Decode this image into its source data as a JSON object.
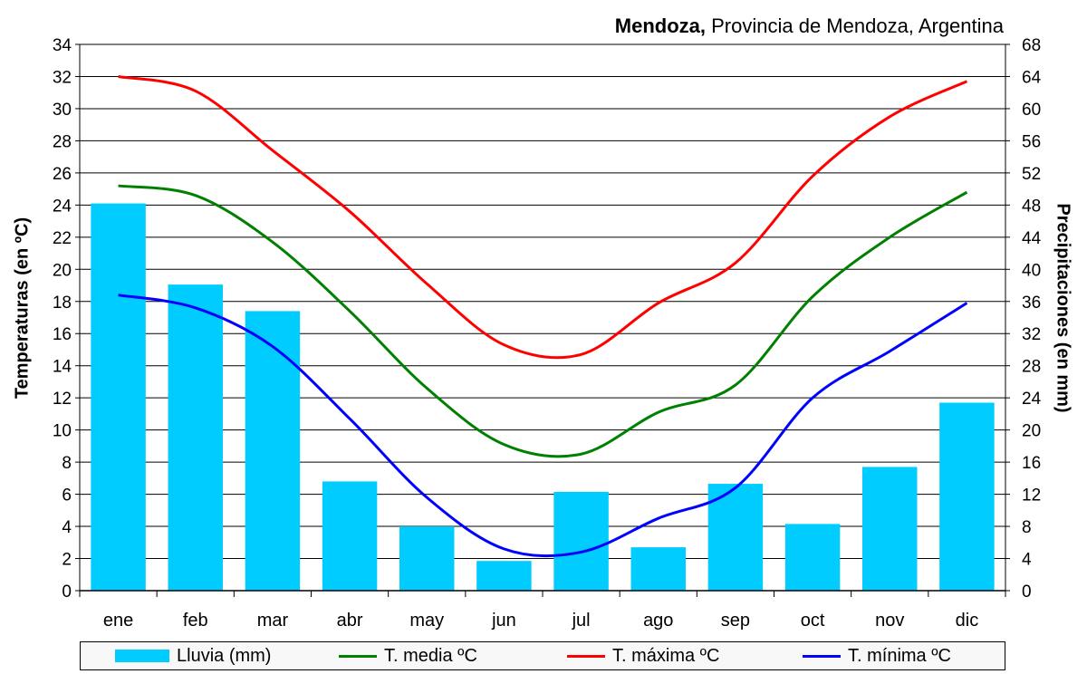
{
  "title": {
    "bold": "Mendoza,",
    "rest": " Provincia de Mendoza, Argentina"
  },
  "ylabel_left": "Temperaturas (en ºC)",
  "ylabel_right": "Precipitaciones (en mm)",
  "legend": {
    "rain": "Lluvia (mm)",
    "mean": "T. media ºC",
    "max": "T. máxima ºC",
    "min": "T. mínima ºC"
  },
  "colors": {
    "rain": "#00ccff",
    "mean": "#008000",
    "max": "#ff0000",
    "min": "#0000ff"
  },
  "chart_data": {
    "type": "bar",
    "title": "Mendoza, Provincia de Mendoza, Argentina",
    "categories": [
      "ene",
      "feb",
      "mar",
      "abr",
      "may",
      "jun",
      "jul",
      "ago",
      "sep",
      "oct",
      "nov",
      "dic"
    ],
    "ylabel": "Temperaturas (en ºC)",
    "ylabel_right": "Precipitaciones (en mm)",
    "ylim": [
      0,
      34
    ],
    "ylim_right": [
      0,
      68
    ],
    "yticks": [
      0,
      2,
      4,
      6,
      8,
      10,
      12,
      14,
      16,
      18,
      20,
      22,
      24,
      26,
      28,
      30,
      32,
      34
    ],
    "yticks_right": [
      0,
      4,
      8,
      12,
      16,
      20,
      24,
      28,
      32,
      36,
      40,
      44,
      48,
      52,
      56,
      60,
      64,
      68
    ],
    "grid": true,
    "legend_position": "bottom",
    "series": [
      {
        "name": "Lluvia (mm)",
        "type": "bar",
        "axis": "right",
        "values": [
          48.2,
          38.1,
          34.8,
          13.6,
          8.0,
          3.7,
          12.3,
          5.4,
          13.3,
          8.3,
          15.4,
          23.4
        ]
      },
      {
        "name": "T. media ºC",
        "type": "line",
        "axis": "left",
        "values": [
          25.2,
          24.6,
          21.7,
          17.4,
          12.6,
          9.1,
          8.5,
          11.1,
          12.8,
          18.3,
          22.0,
          24.8
        ]
      },
      {
        "name": "T. máxima ºC",
        "type": "line",
        "axis": "left",
        "values": [
          32.0,
          31.1,
          27.4,
          23.6,
          19.1,
          15.3,
          14.7,
          17.9,
          20.4,
          25.8,
          29.5,
          31.7
        ]
      },
      {
        "name": "T. mínima ºC",
        "type": "line",
        "axis": "left",
        "values": [
          18.4,
          17.6,
          15.2,
          10.7,
          5.8,
          2.6,
          2.4,
          4.5,
          6.4,
          12.0,
          14.9,
          17.9
        ]
      }
    ]
  }
}
